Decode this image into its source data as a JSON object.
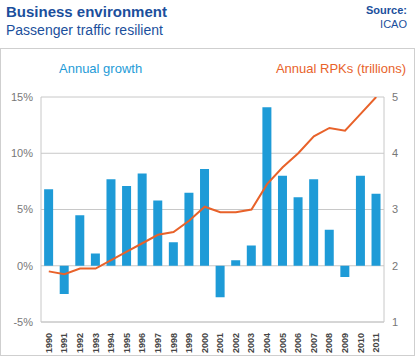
{
  "chart_data": {
    "type": "bar",
    "title": "Business environment",
    "subtitle": "Passenger traffic resilient",
    "source_label": "Source:",
    "source": "ICAO",
    "categories": [
      "1990",
      "1991",
      "1992",
      "1993",
      "1994",
      "1995",
      "1996",
      "1997",
      "1998",
      "1999",
      "2000",
      "2001",
      "2002",
      "2003",
      "2004",
      "2005",
      "2006",
      "2007",
      "2008",
      "2009",
      "2010",
      "2011"
    ],
    "series": [
      {
        "name": "Annual growth",
        "type": "bar",
        "color": "#1e9bd7",
        "values": [
          6.8,
          -2.5,
          4.5,
          1.1,
          7.7,
          7.1,
          8.2,
          5.8,
          2.1,
          6.5,
          8.6,
          -2.8,
          0.5,
          1.8,
          14.1,
          8.0,
          6.1,
          7.7,
          3.2,
          -1.0,
          8.0,
          6.4
        ]
      },
      {
        "name": "Annual RPKs (trillions)",
        "type": "line",
        "color": "#e8622a",
        "axis": "y2",
        "values": [
          1.9,
          1.85,
          1.95,
          1.95,
          2.1,
          2.25,
          2.4,
          2.55,
          2.6,
          2.8,
          3.05,
          2.95,
          2.95,
          3.0,
          3.45,
          3.75,
          4.0,
          4.3,
          4.45,
          4.4,
          4.7,
          5.0
        ]
      }
    ],
    "ylim": [
      -5,
      15
    ],
    "yticks": [
      {
        "value": -5,
        "label": "-5%"
      },
      {
        "value": 0,
        "label": "0%"
      },
      {
        "value": 5,
        "label": "5%"
      },
      {
        "value": 10,
        "label": "10%"
      },
      {
        "value": 15,
        "label": "15%"
      }
    ],
    "y2lim": [
      1,
      5
    ],
    "y2ticks": [
      1,
      2,
      3,
      4,
      5
    ],
    "grid": true
  }
}
